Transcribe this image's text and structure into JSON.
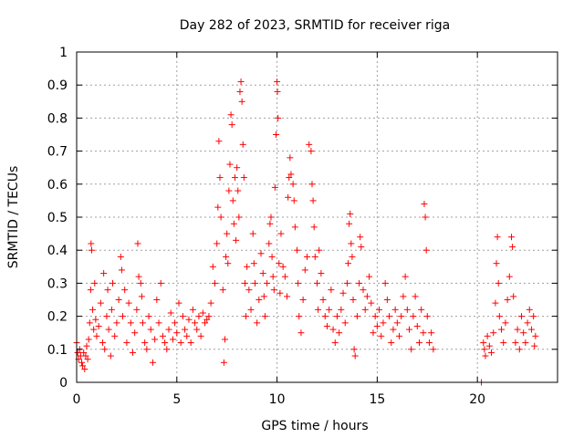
{
  "chart_data": {
    "type": "scatter",
    "title": "Day 282 of 2023, SRMTID for receiver riga",
    "xlabel": "GPS time / hours",
    "ylabel": "SRMTID / TECUs",
    "xlim": [
      0,
      24
    ],
    "ylim": [
      0,
      1
    ],
    "x_ticks": [
      0,
      5,
      10,
      15,
      20
    ],
    "x_tick_labels": [
      "0",
      "5",
      "10",
      "15",
      "20"
    ],
    "y_ticks": [
      0,
      0.1,
      0.2,
      0.3,
      0.4,
      0.5,
      0.6,
      0.7,
      0.8,
      0.9,
      1
    ],
    "y_tick_labels": [
      "0",
      "0.1",
      "0.2",
      "0.3",
      "0.4",
      "0.5",
      "0.6",
      "0.7",
      "0.8",
      "0.9",
      "1"
    ],
    "grid": true,
    "marker": "plus",
    "color": "#ff0000",
    "series": [
      {
        "name": "SRMTID",
        "points": [
          [
            0.0,
            0.12
          ],
          [
            0.05,
            0.09
          ],
          [
            0.1,
            0.07
          ],
          [
            0.15,
            0.1
          ],
          [
            0.2,
            0.08
          ],
          [
            0.25,
            0.06
          ],
          [
            0.3,
            0.05
          ],
          [
            0.35,
            0.09
          ],
          [
            0.4,
            0.04
          ],
          [
            0.45,
            0.08
          ],
          [
            0.5,
            0.11
          ],
          [
            0.55,
            0.07
          ],
          [
            0.6,
            0.13
          ],
          [
            0.65,
            0.18
          ],
          [
            0.7,
            0.28
          ],
          [
            0.72,
            0.42
          ],
          [
            0.75,
            0.4
          ],
          [
            0.8,
            0.22
          ],
          [
            0.85,
            0.16
          ],
          [
            0.9,
            0.3
          ],
          [
            0.95,
            0.19
          ],
          [
            1.0,
            0.14
          ],
          [
            1.1,
            0.17
          ],
          [
            1.2,
            0.24
          ],
          [
            1.3,
            0.12
          ],
          [
            1.35,
            0.33
          ],
          [
            1.4,
            0.1
          ],
          [
            1.5,
            0.2
          ],
          [
            1.55,
            0.28
          ],
          [
            1.6,
            0.16
          ],
          [
            1.7,
            0.08
          ],
          [
            1.75,
            0.22
          ],
          [
            1.8,
            0.3
          ],
          [
            1.9,
            0.14
          ],
          [
            2.0,
            0.18
          ],
          [
            2.1,
            0.25
          ],
          [
            2.2,
            0.38
          ],
          [
            2.25,
            0.34
          ],
          [
            2.3,
            0.2
          ],
          [
            2.4,
            0.28
          ],
          [
            2.5,
            0.12
          ],
          [
            2.6,
            0.24
          ],
          [
            2.7,
            0.18
          ],
          [
            2.8,
            0.09
          ],
          [
            2.9,
            0.15
          ],
          [
            3.0,
            0.22
          ],
          [
            3.05,
            0.42
          ],
          [
            3.1,
            0.32
          ],
          [
            3.2,
            0.3
          ],
          [
            3.25,
            0.26
          ],
          [
            3.3,
            0.18
          ],
          [
            3.4,
            0.12
          ],
          [
            3.5,
            0.1
          ],
          [
            3.6,
            0.2
          ],
          [
            3.7,
            0.16
          ],
          [
            3.8,
            0.06
          ],
          [
            3.9,
            0.13
          ],
          [
            4.0,
            0.25
          ],
          [
            4.1,
            0.18
          ],
          [
            4.2,
            0.3
          ],
          [
            4.3,
            0.14
          ],
          [
            4.4,
            0.12
          ],
          [
            4.5,
            0.1
          ],
          [
            4.6,
            0.16
          ],
          [
            4.7,
            0.21
          ],
          [
            4.8,
            0.13
          ],
          [
            4.9,
            0.18
          ],
          [
            5.0,
            0.15
          ],
          [
            5.1,
            0.24
          ],
          [
            5.2,
            0.12
          ],
          [
            5.3,
            0.2
          ],
          [
            5.4,
            0.16
          ],
          [
            5.5,
            0.14
          ],
          [
            5.6,
            0.19
          ],
          [
            5.7,
            0.12
          ],
          [
            5.8,
            0.22
          ],
          [
            5.9,
            0.18
          ],
          [
            6.0,
            0.16
          ],
          [
            6.1,
            0.2
          ],
          [
            6.2,
            0.14
          ],
          [
            6.3,
            0.21
          ],
          [
            6.4,
            0.18
          ],
          [
            6.5,
            0.19
          ],
          [
            6.6,
            0.2
          ],
          [
            6.7,
            0.24
          ],
          [
            6.8,
            0.35
          ],
          [
            6.9,
            0.3
          ],
          [
            7.0,
            0.42
          ],
          [
            7.05,
            0.53
          ],
          [
            7.1,
            0.73
          ],
          [
            7.15,
            0.62
          ],
          [
            7.2,
            0.5
          ],
          [
            7.3,
            0.28
          ],
          [
            7.35,
            0.06
          ],
          [
            7.4,
            0.13
          ],
          [
            7.45,
            0.38
          ],
          [
            7.5,
            0.45
          ],
          [
            7.55,
            0.36
          ],
          [
            7.6,
            0.58
          ],
          [
            7.65,
            0.66
          ],
          [
            7.7,
            0.81
          ],
          [
            7.75,
            0.78
          ],
          [
            7.8,
            0.55
          ],
          [
            7.85,
            0.48
          ],
          [
            7.9,
            0.62
          ],
          [
            7.95,
            0.43
          ],
          [
            8.0,
            0.65
          ],
          [
            8.05,
            0.58
          ],
          [
            8.1,
            0.5
          ],
          [
            8.15,
            0.88
          ],
          [
            8.2,
            0.91
          ],
          [
            8.25,
            0.85
          ],
          [
            8.3,
            0.72
          ],
          [
            8.35,
            0.62
          ],
          [
            8.4,
            0.3
          ],
          [
            8.45,
            0.2
          ],
          [
            8.5,
            0.35
          ],
          [
            8.6,
            0.28
          ],
          [
            8.7,
            0.22
          ],
          [
            8.8,
            0.45
          ],
          [
            8.85,
            0.36
          ],
          [
            8.9,
            0.3
          ],
          [
            9.0,
            0.18
          ],
          [
            9.1,
            0.25
          ],
          [
            9.2,
            0.39
          ],
          [
            9.3,
            0.33
          ],
          [
            9.35,
            0.26
          ],
          [
            9.4,
            0.2
          ],
          [
            9.5,
            0.3
          ],
          [
            9.6,
            0.42
          ],
          [
            9.65,
            0.48
          ],
          [
            9.7,
            0.5
          ],
          [
            9.75,
            0.38
          ],
          [
            9.8,
            0.32
          ],
          [
            9.85,
            0.28
          ],
          [
            9.9,
            0.59
          ],
          [
            9.95,
            0.75
          ],
          [
            10.0,
            0.91
          ],
          [
            10.02,
            0.88
          ],
          [
            10.05,
            0.8
          ],
          [
            10.1,
            0.36
          ],
          [
            10.15,
            0.27
          ],
          [
            10.2,
            0.45
          ],
          [
            10.3,
            0.35
          ],
          [
            10.4,
            0.32
          ],
          [
            10.5,
            0.26
          ],
          [
            10.55,
            0.56
          ],
          [
            10.6,
            0.62
          ],
          [
            10.65,
            0.68
          ],
          [
            10.7,
            0.63
          ],
          [
            10.8,
            0.6
          ],
          [
            10.85,
            0.55
          ],
          [
            10.9,
            0.47
          ],
          [
            11.0,
            0.4
          ],
          [
            11.05,
            0.3
          ],
          [
            11.1,
            0.2
          ],
          [
            11.2,
            0.15
          ],
          [
            11.3,
            0.25
          ],
          [
            11.4,
            0.34
          ],
          [
            11.5,
            0.38
          ],
          [
            11.6,
            0.72
          ],
          [
            11.7,
            0.7
          ],
          [
            11.75,
            0.6
          ],
          [
            11.8,
            0.55
          ],
          [
            11.85,
            0.47
          ],
          [
            11.9,
            0.38
          ],
          [
            12.0,
            0.3
          ],
          [
            12.05,
            0.22
          ],
          [
            12.1,
            0.4
          ],
          [
            12.2,
            0.33
          ],
          [
            12.3,
            0.25
          ],
          [
            12.4,
            0.2
          ],
          [
            12.5,
            0.17
          ],
          [
            12.6,
            0.22
          ],
          [
            12.7,
            0.28
          ],
          [
            12.8,
            0.16
          ],
          [
            12.9,
            0.12
          ],
          [
            13.0,
            0.2
          ],
          [
            13.1,
            0.15
          ],
          [
            13.2,
            0.22
          ],
          [
            13.3,
            0.27
          ],
          [
            13.4,
            0.18
          ],
          [
            13.5,
            0.3
          ],
          [
            13.55,
            0.36
          ],
          [
            13.6,
            0.48
          ],
          [
            13.65,
            0.51
          ],
          [
            13.7,
            0.42
          ],
          [
            13.75,
            0.38
          ],
          [
            13.8,
            0.25
          ],
          [
            13.85,
            0.1
          ],
          [
            13.9,
            0.08
          ],
          [
            14.0,
            0.2
          ],
          [
            14.1,
            0.3
          ],
          [
            14.15,
            0.44
          ],
          [
            14.2,
            0.41
          ],
          [
            14.3,
            0.28
          ],
          [
            14.4,
            0.22
          ],
          [
            14.5,
            0.26
          ],
          [
            14.6,
            0.32
          ],
          [
            14.7,
            0.24
          ],
          [
            14.8,
            0.15
          ],
          [
            14.9,
            0.2
          ],
          [
            15.0,
            0.17
          ],
          [
            15.1,
            0.22
          ],
          [
            15.2,
            0.14
          ],
          [
            15.3,
            0.18
          ],
          [
            15.4,
            0.3
          ],
          [
            15.5,
            0.25
          ],
          [
            15.6,
            0.2
          ],
          [
            15.7,
            0.12
          ],
          [
            15.8,
            0.16
          ],
          [
            15.9,
            0.22
          ],
          [
            16.0,
            0.18
          ],
          [
            16.1,
            0.14
          ],
          [
            16.2,
            0.2
          ],
          [
            16.3,
            0.26
          ],
          [
            16.4,
            0.32
          ],
          [
            16.5,
            0.22
          ],
          [
            16.6,
            0.16
          ],
          [
            16.7,
            0.1
          ],
          [
            16.8,
            0.2
          ],
          [
            16.9,
            0.26
          ],
          [
            17.0,
            0.17
          ],
          [
            17.1,
            0.12
          ],
          [
            17.2,
            0.22
          ],
          [
            17.3,
            0.15
          ],
          [
            17.35,
            0.54
          ],
          [
            17.4,
            0.5
          ],
          [
            17.45,
            0.4
          ],
          [
            17.5,
            0.2
          ],
          [
            17.6,
            0.12
          ],
          [
            17.7,
            0.15
          ],
          [
            17.8,
            0.1
          ],
          [
            20.2,
            0.0
          ],
          [
            20.3,
            0.12
          ],
          [
            20.35,
            0.1
          ],
          [
            20.4,
            0.08
          ],
          [
            20.5,
            0.14
          ],
          [
            20.6,
            0.11
          ],
          [
            20.7,
            0.09
          ],
          [
            20.8,
            0.15
          ],
          [
            20.9,
            0.24
          ],
          [
            20.95,
            0.36
          ],
          [
            21.0,
            0.44
          ],
          [
            21.05,
            0.3
          ],
          [
            21.1,
            0.2
          ],
          [
            21.2,
            0.16
          ],
          [
            21.3,
            0.12
          ],
          [
            21.4,
            0.18
          ],
          [
            21.5,
            0.25
          ],
          [
            21.6,
            0.32
          ],
          [
            21.7,
            0.44
          ],
          [
            21.75,
            0.41
          ],
          [
            21.8,
            0.26
          ],
          [
            21.9,
            0.12
          ],
          [
            22.0,
            0.16
          ],
          [
            22.1,
            0.1
          ],
          [
            22.2,
            0.2
          ],
          [
            22.3,
            0.15
          ],
          [
            22.4,
            0.12
          ],
          [
            22.5,
            0.18
          ],
          [
            22.6,
            0.22
          ],
          [
            22.7,
            0.16
          ],
          [
            22.8,
            0.2
          ],
          [
            22.85,
            0.11
          ],
          [
            22.9,
            0.14
          ]
        ]
      }
    ]
  }
}
